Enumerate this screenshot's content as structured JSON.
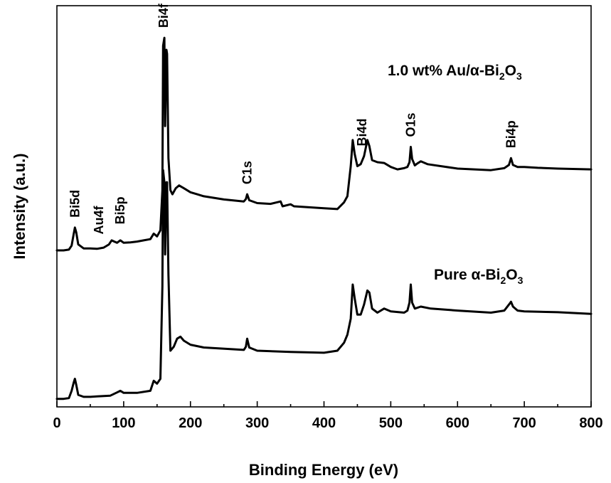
{
  "chart_data": {
    "type": "line",
    "xlabel": "Binding Energy (eV)",
    "ylabel": "Intensity (a.u.)",
    "xlim": [
      0,
      800
    ],
    "ylim": [
      0,
      1
    ],
    "x_ticks": [
      0,
      100,
      200,
      300,
      400,
      500,
      600,
      700,
      800
    ],
    "y_tick_labels": false,
    "grid": false,
    "series": [
      {
        "label_main": "1.0 wt% Au/",
        "label_alpha": "α",
        "label_dash": "-Bi",
        "label_sub1": "2",
        "label_o": "O",
        "label_sub2": "3",
        "points": [
          [
            0,
            0.39
          ],
          [
            10,
            0.39
          ],
          [
            18,
            0.392
          ],
          [
            22,
            0.402
          ],
          [
            25,
            0.43
          ],
          [
            27,
            0.447
          ],
          [
            29,
            0.435
          ],
          [
            32,
            0.405
          ],
          [
            40,
            0.395
          ],
          [
            50,
            0.395
          ],
          [
            60,
            0.394
          ],
          [
            70,
            0.397
          ],
          [
            78,
            0.405
          ],
          [
            82,
            0.415
          ],
          [
            86,
            0.412
          ],
          [
            90,
            0.409
          ],
          [
            95,
            0.415
          ],
          [
            100,
            0.409
          ],
          [
            110,
            0.41
          ],
          [
            120,
            0.412
          ],
          [
            130,
            0.415
          ],
          [
            140,
            0.418
          ],
          [
            145,
            0.432
          ],
          [
            150,
            0.425
          ],
          [
            155,
            0.44
          ],
          [
            158,
            0.54
          ],
          [
            159,
            0.9
          ],
          [
            161,
            0.92
          ],
          [
            162,
            0.7
          ],
          [
            164,
            0.89
          ],
          [
            165,
            0.88
          ],
          [
            167,
            0.62
          ],
          [
            170,
            0.54
          ],
          [
            173,
            0.53
          ],
          [
            178,
            0.545
          ],
          [
            183,
            0.552
          ],
          [
            190,
            0.545
          ],
          [
            200,
            0.535
          ],
          [
            210,
            0.53
          ],
          [
            220,
            0.525
          ],
          [
            250,
            0.517
          ],
          [
            280,
            0.512
          ],
          [
            283,
            0.518
          ],
          [
            285,
            0.53
          ],
          [
            288,
            0.515
          ],
          [
            300,
            0.508
          ],
          [
            320,
            0.506
          ],
          [
            335,
            0.512
          ],
          [
            338,
            0.5
          ],
          [
            350,
            0.505
          ],
          [
            355,
            0.5
          ],
          [
            400,
            0.495
          ],
          [
            420,
            0.493
          ],
          [
            430,
            0.51
          ],
          [
            435,
            0.525
          ],
          [
            440,
            0.6
          ],
          [
            443,
            0.665
          ],
          [
            446,
            0.63
          ],
          [
            450,
            0.6
          ],
          [
            455,
            0.605
          ],
          [
            460,
            0.625
          ],
          [
            465,
            0.665
          ],
          [
            468,
            0.65
          ],
          [
            472,
            0.615
          ],
          [
            480,
            0.61
          ],
          [
            490,
            0.608
          ],
          [
            500,
            0.598
          ],
          [
            510,
            0.592
          ],
          [
            520,
            0.595
          ],
          [
            525,
            0.598
          ],
          [
            528,
            0.61
          ],
          [
            530,
            0.648
          ],
          [
            532,
            0.618
          ],
          [
            536,
            0.602
          ],
          [
            540,
            0.607
          ],
          [
            545,
            0.612
          ],
          [
            555,
            0.605
          ],
          [
            600,
            0.594
          ],
          [
            650,
            0.59
          ],
          [
            670,
            0.595
          ],
          [
            677,
            0.603
          ],
          [
            680,
            0.62
          ],
          [
            683,
            0.603
          ],
          [
            690,
            0.598
          ],
          [
            700,
            0.598
          ],
          [
            720,
            0.596
          ],
          [
            750,
            0.594
          ],
          [
            800,
            0.592
          ]
        ]
      },
      {
        "label_main": "Pure ",
        "label_alpha": "α",
        "label_dash": "-Bi",
        "label_sub1": "2",
        "label_o": "O",
        "label_sub2": "3",
        "points": [
          [
            0,
            0.02
          ],
          [
            10,
            0.02
          ],
          [
            18,
            0.022
          ],
          [
            22,
            0.04
          ],
          [
            25,
            0.06
          ],
          [
            27,
            0.07
          ],
          [
            29,
            0.055
          ],
          [
            32,
            0.03
          ],
          [
            40,
            0.025
          ],
          [
            50,
            0.025
          ],
          [
            60,
            0.026
          ],
          [
            80,
            0.028
          ],
          [
            90,
            0.036
          ],
          [
            95,
            0.04
          ],
          [
            100,
            0.035
          ],
          [
            120,
            0.035
          ],
          [
            140,
            0.04
          ],
          [
            145,
            0.065
          ],
          [
            150,
            0.058
          ],
          [
            155,
            0.07
          ],
          [
            158,
            0.3
          ],
          [
            159,
            0.59
          ],
          [
            161,
            0.56
          ],
          [
            162,
            0.38
          ],
          [
            164,
            0.56
          ],
          [
            165,
            0.56
          ],
          [
            167,
            0.33
          ],
          [
            170,
            0.14
          ],
          [
            175,
            0.15
          ],
          [
            180,
            0.17
          ],
          [
            185,
            0.175
          ],
          [
            190,
            0.165
          ],
          [
            200,
            0.155
          ],
          [
            220,
            0.148
          ],
          [
            280,
            0.142
          ],
          [
            283,
            0.15
          ],
          [
            285,
            0.17
          ],
          [
            288,
            0.148
          ],
          [
            300,
            0.14
          ],
          [
            350,
            0.137
          ],
          [
            400,
            0.135
          ],
          [
            420,
            0.14
          ],
          [
            430,
            0.16
          ],
          [
            435,
            0.18
          ],
          [
            440,
            0.22
          ],
          [
            443,
            0.305
          ],
          [
            446,
            0.27
          ],
          [
            450,
            0.23
          ],
          [
            455,
            0.23
          ],
          [
            460,
            0.255
          ],
          [
            465,
            0.29
          ],
          [
            468,
            0.285
          ],
          [
            472,
            0.245
          ],
          [
            480,
            0.235
          ],
          [
            490,
            0.245
          ],
          [
            500,
            0.238
          ],
          [
            520,
            0.235
          ],
          [
            525,
            0.24
          ],
          [
            528,
            0.26
          ],
          [
            530,
            0.305
          ],
          [
            532,
            0.26
          ],
          [
            536,
            0.245
          ],
          [
            545,
            0.25
          ],
          [
            560,
            0.245
          ],
          [
            600,
            0.24
          ],
          [
            650,
            0.235
          ],
          [
            670,
            0.24
          ],
          [
            677,
            0.255
          ],
          [
            680,
            0.262
          ],
          [
            683,
            0.25
          ],
          [
            690,
            0.24
          ],
          [
            700,
            0.238
          ],
          [
            750,
            0.236
          ],
          [
            800,
            0.232
          ]
        ]
      }
    ],
    "annotations": [
      {
        "text": "Bi5d",
        "x": 27
      },
      {
        "text": "Au4f",
        "x": 63
      },
      {
        "text": "Bi5p",
        "x": 95
      },
      {
        "text": "Bi4f",
        "x": 160
      },
      {
        "text": "C1s",
        "x": 285
      },
      {
        "text": "Bi4d",
        "x": 457
      },
      {
        "text": "O1s",
        "x": 530
      },
      {
        "text": "Bi4p",
        "x": 680
      }
    ]
  }
}
